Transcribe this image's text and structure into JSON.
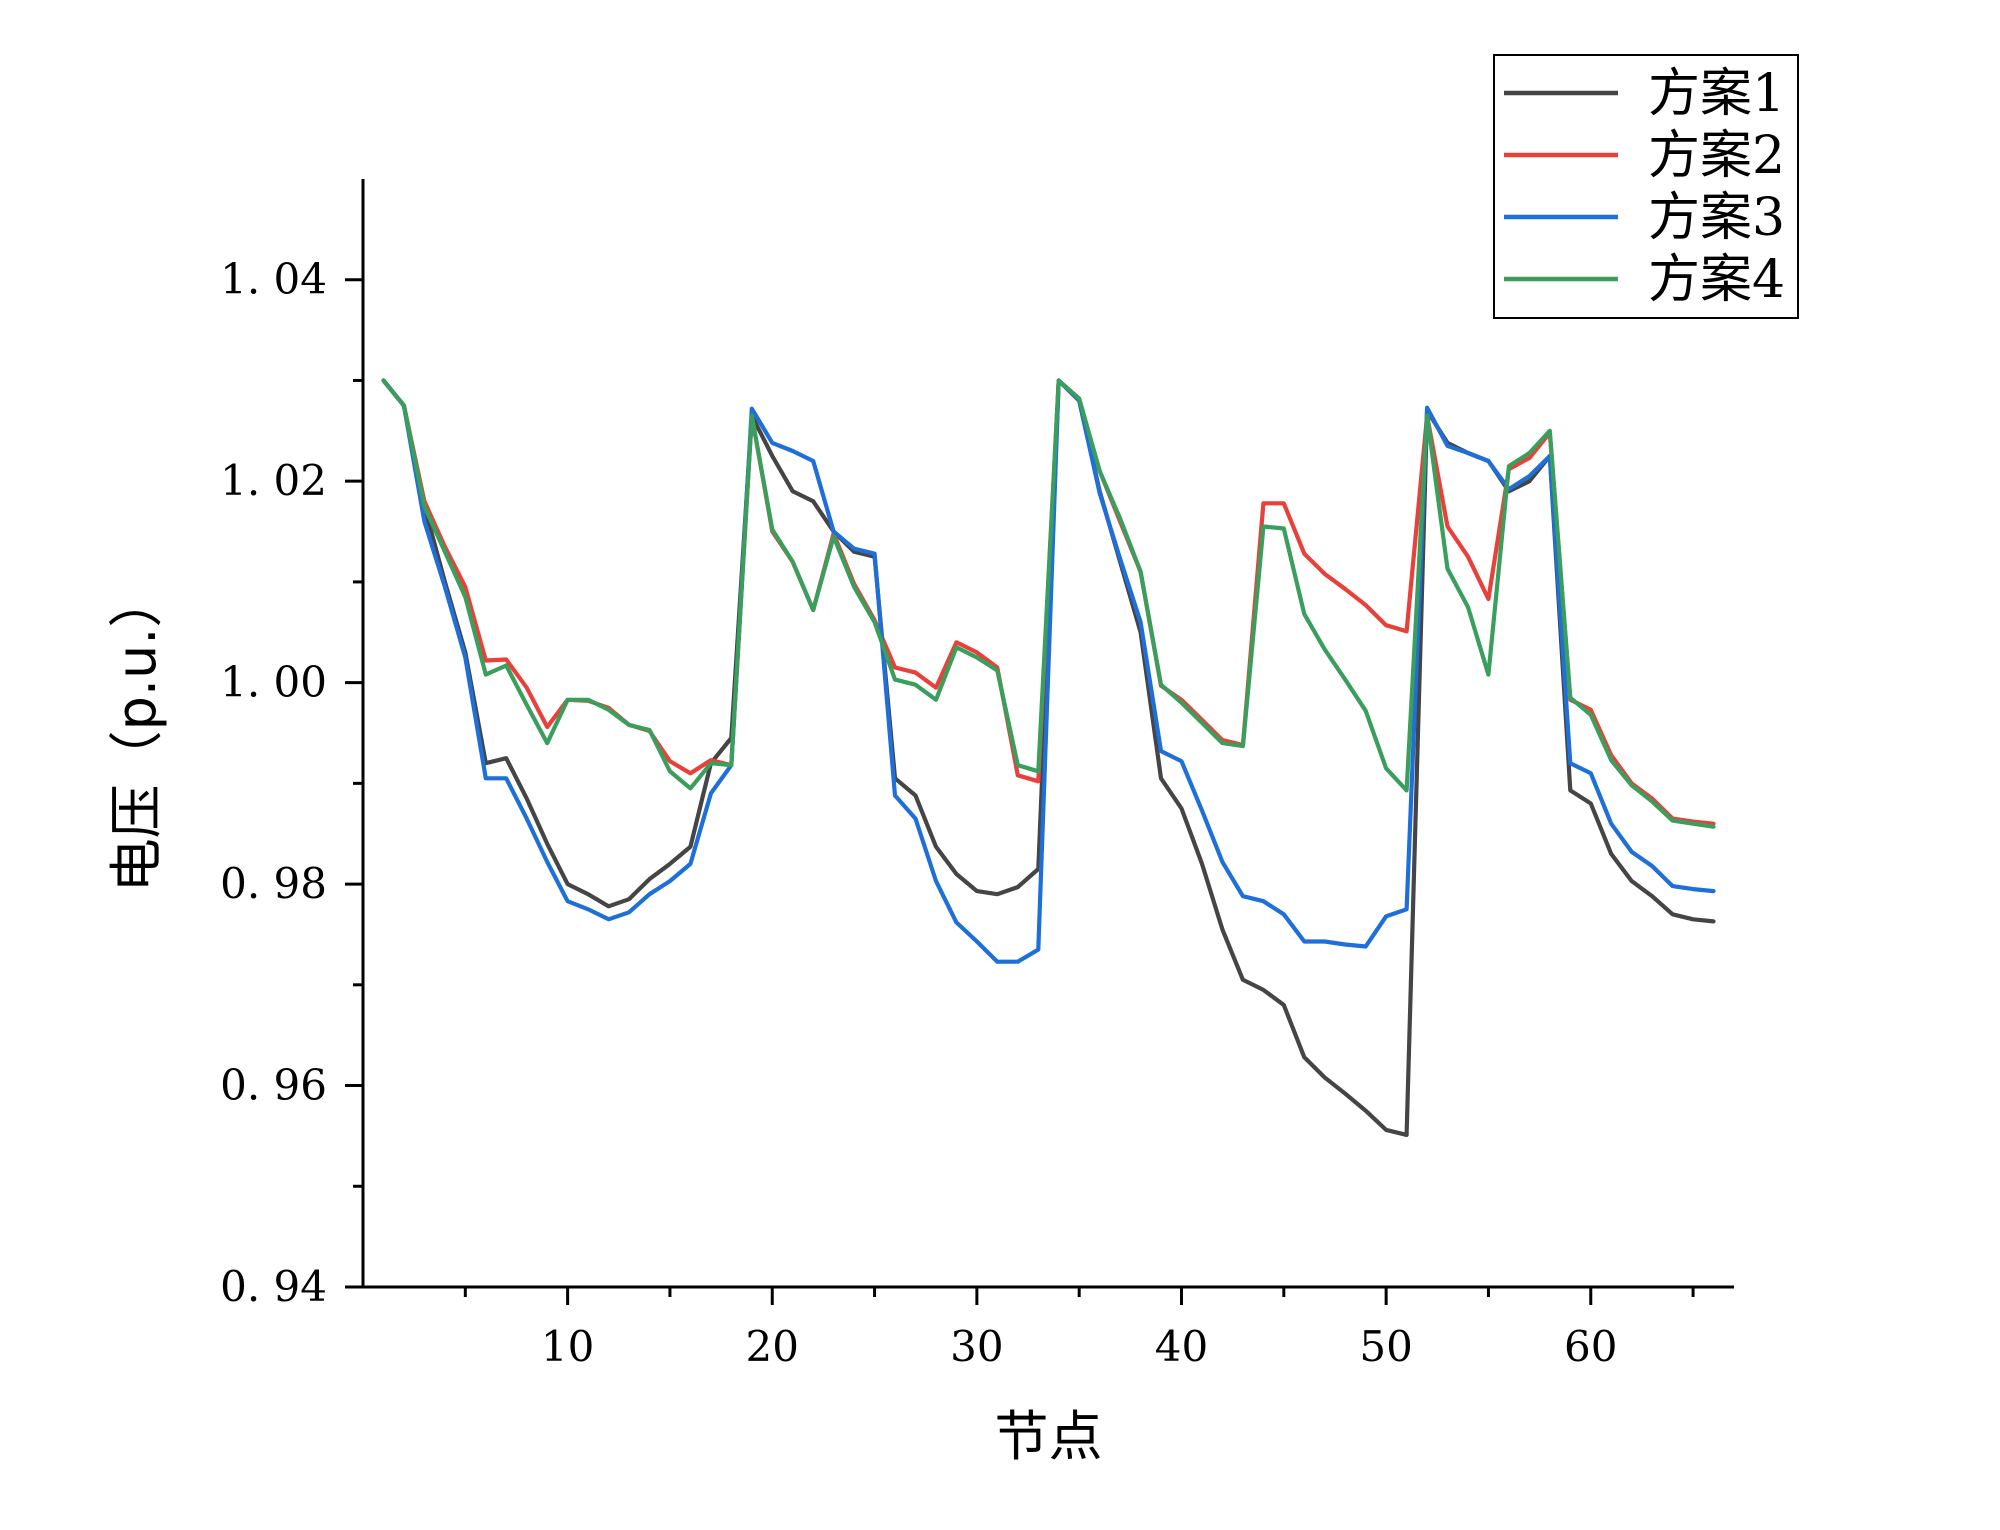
{
  "chart_data": {
    "type": "line",
    "title": "",
    "xlabel": "节点",
    "ylabel": "电压（p.u.）",
    "xlim": [
      0,
      67
    ],
    "ylim": [
      0.94,
      1.05
    ],
    "xticks": [
      10,
      20,
      30,
      40,
      50,
      60
    ],
    "xtick_labels": [
      "10",
      "20",
      "30",
      "40",
      "50",
      "60"
    ],
    "yticks": [
      0.94,
      0.96,
      0.98,
      1.0,
      1.02,
      1.04
    ],
    "ytick_labels": [
      "0. 94",
      "0. 96",
      "0. 98",
      "1. 00",
      "1. 02",
      "1. 04"
    ],
    "grid": false,
    "legend_position": "top-right",
    "x": [
      1,
      2,
      3,
      4,
      5,
      6,
      7,
      8,
      9,
      10,
      11,
      12,
      13,
      14,
      15,
      16,
      17,
      18,
      19,
      20,
      21,
      22,
      23,
      24,
      25,
      26,
      27,
      28,
      29,
      30,
      31,
      32,
      33,
      34,
      35,
      36,
      37,
      38,
      39,
      40,
      41,
      42,
      43,
      44,
      45,
      46,
      47,
      48,
      49,
      50,
      51,
      52,
      53,
      54,
      55,
      56,
      57,
      58,
      59,
      60,
      61,
      62,
      63,
      64,
      65,
      66
    ],
    "series": [
      {
        "name": "方案1",
        "color": "#454545",
        "values": [
          1.03,
          1.0275,
          1.0175,
          1.01,
          1.003,
          0.992,
          0.9925,
          0.9885,
          0.984,
          0.98,
          0.979,
          0.9778,
          0.9785,
          0.9805,
          0.982,
          0.9837,
          0.992,
          0.9945,
          1.0265,
          1.0225,
          1.019,
          1.018,
          1.015,
          1.013,
          1.0125,
          0.9905,
          0.9888,
          0.9837,
          0.981,
          0.9793,
          0.979,
          0.9797,
          0.9815,
          1.03,
          1.028,
          1.019,
          1.012,
          1.005,
          0.9905,
          0.9875,
          0.982,
          0.9755,
          0.9705,
          0.9695,
          0.968,
          0.9628,
          0.9608,
          0.9592,
          0.9575,
          0.9556,
          0.9551,
          1.027,
          1.0238,
          1.0228,
          1.022,
          1.019,
          1.02,
          1.0225,
          0.9893,
          0.988,
          0.983,
          0.9803,
          0.9788,
          0.977,
          0.9765,
          0.9763
        ]
      },
      {
        "name": "方案2",
        "color": "#e8413b",
        "values": [
          1.03,
          1.0275,
          1.018,
          1.0135,
          1.0095,
          1.0022,
          1.0023,
          0.9995,
          0.9956,
          0.9983,
          0.9982,
          0.9975,
          0.9958,
          0.9952,
          0.9922,
          0.991,
          0.9923,
          0.9918,
          1.0265,
          1.015,
          1.012,
          1.0072,
          1.0148,
          1.0098,
          1.0062,
          1.0015,
          1.001,
          0.9995,
          1.004,
          1.003,
          1.0015,
          0.9908,
          0.9902,
          1.03,
          1.028,
          1.021,
          1.016,
          1.011,
          0.9997,
          0.9983,
          0.9963,
          0.9943,
          0.9938,
          1.0178,
          1.0178,
          1.0128,
          1.0108,
          1.0093,
          1.0077,
          1.0057,
          1.0051,
          1.0265,
          1.0155,
          1.0125,
          1.0083,
          1.0212,
          1.0223,
          1.0248,
          0.9983,
          0.9973,
          0.9928,
          0.99,
          0.9885,
          0.9865,
          0.9862,
          0.986
        ]
      },
      {
        "name": "方案3",
        "color": "#1e6fd9",
        "values": [
          1.03,
          1.0275,
          1.016,
          1.0095,
          1.0025,
          0.9905,
          0.9905,
          0.9865,
          0.9822,
          0.9783,
          0.9775,
          0.9765,
          0.9772,
          0.979,
          0.9803,
          0.982,
          0.989,
          0.9918,
          1.0272,
          1.0238,
          1.023,
          1.022,
          1.015,
          1.0133,
          1.0128,
          0.9888,
          0.9865,
          0.9803,
          0.9762,
          0.9743,
          0.9723,
          0.9723,
          0.9735,
          1.03,
          1.028,
          1.0188,
          1.0123,
          1.006,
          0.9932,
          0.9922,
          0.9873,
          0.9822,
          0.9788,
          0.9783,
          0.977,
          0.9743,
          0.9743,
          0.974,
          0.9738,
          0.9768,
          0.9775,
          1.0273,
          1.0235,
          1.0228,
          1.022,
          1.0192,
          1.0205,
          1.0225,
          0.992,
          0.991,
          0.986,
          0.9832,
          0.9818,
          0.9798,
          0.9795,
          0.9793
        ]
      },
      {
        "name": "方案4",
        "color": "#3a9e5c",
        "values": [
          1.03,
          1.0275,
          1.0175,
          1.013,
          1.0085,
          1.0008,
          1.0017,
          0.9978,
          0.994,
          0.9983,
          0.9983,
          0.9973,
          0.9958,
          0.9953,
          0.9912,
          0.9895,
          0.992,
          0.9918,
          1.0265,
          1.0152,
          1.012,
          1.0072,
          1.0145,
          1.0095,
          1.006,
          1.0003,
          0.9998,
          0.9983,
          1.0035,
          1.0025,
          1.0012,
          0.9918,
          0.9912,
          1.03,
          1.0282,
          1.021,
          1.0163,
          1.011,
          0.9998,
          0.998,
          0.996,
          0.994,
          0.9937,
          1.0155,
          1.0153,
          1.0068,
          1.0033,
          1.0003,
          0.9972,
          0.9915,
          0.9893,
          1.0265,
          1.0113,
          1.0075,
          1.0008,
          1.0215,
          1.0228,
          1.025,
          0.9985,
          0.9968,
          0.9923,
          0.9898,
          0.9882,
          0.9863,
          0.986,
          0.9857
        ]
      }
    ]
  }
}
